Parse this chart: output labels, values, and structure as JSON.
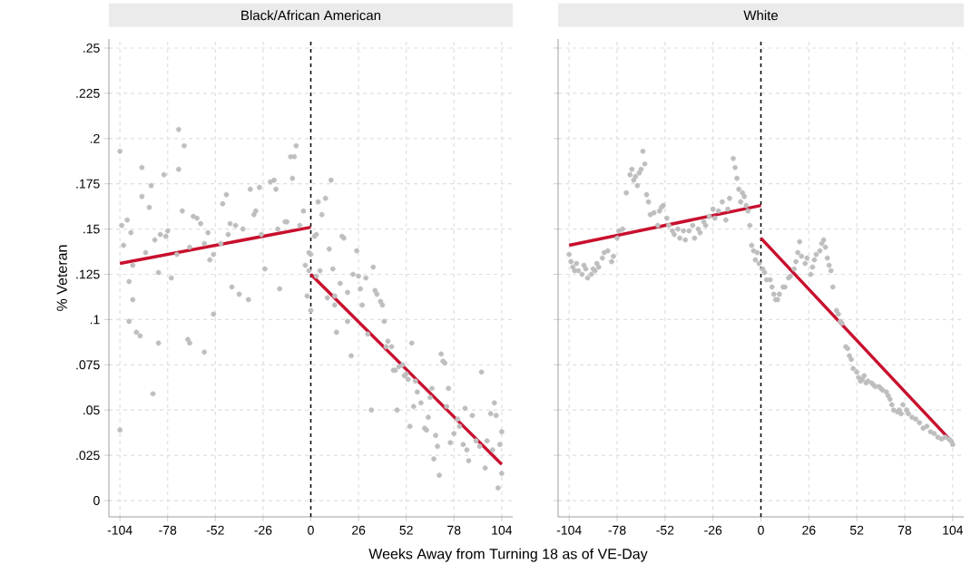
{
  "chart_data": [
    {
      "type": "scatter",
      "marker": "circle",
      "title": "Black/African American",
      "ylabel": "% Veteran",
      "xlabel": "Weeks Away from Turning 18 as of VE-Day",
      "xlim": [
        -110,
        110
      ],
      "ylim": [
        -0.009,
        0.255
      ],
      "xticks": [
        -104,
        -78,
        -52,
        -26,
        0,
        26,
        52,
        78,
        104
      ],
      "yticks": [
        0,
        {
          "value": 0.025,
          "label": ".025"
        },
        {
          "value": 0.05,
          "label": ".05"
        },
        {
          "value": 0.075,
          "label": ".075"
        },
        {
          "value": 0.1,
          "label": ".1"
        },
        {
          "value": 0.125,
          "label": ".125"
        },
        {
          "value": 0.15,
          "label": ".15"
        },
        {
          "value": 0.175,
          "label": ".175"
        },
        {
          "value": 0.2,
          "label": ".2"
        },
        {
          "value": 0.225,
          "label": ".225"
        },
        {
          "value": 0.25,
          "label": ".25"
        }
      ],
      "grid": true,
      "ref_lines": [
        {
          "axis": "x",
          "value": 0,
          "color": "#000000",
          "line_style": "dashed"
        }
      ],
      "series": [
        {
          "color": "#bebebe",
          "x": [
            -104,
            -104,
            -102,
            -103,
            -100,
            -98,
            -97,
            -99,
            -99,
            -97,
            -95,
            -93,
            -92,
            -92,
            -90,
            -88,
            -87,
            -86,
            -85,
            -83,
            -83,
            -82,
            -80,
            -79,
            -78,
            -76,
            -73,
            -72,
            -72,
            -70,
            -69,
            -67,
            -66,
            -66,
            -64,
            -62,
            -60,
            -58,
            -58,
            -56,
            -55,
            -53,
            -53,
            -49,
            -48,
            -46,
            -45,
            -44,
            -43,
            -41,
            -39,
            -37,
            -34,
            -33,
            -31,
            -30,
            -28,
            -27,
            -25,
            -22,
            -20,
            -19,
            -18,
            -17,
            -14,
            -13,
            -11,
            -10,
            -9,
            -8,
            -6,
            -4,
            -3,
            -2,
            -1,
            -1,
            0,
            0
          ],
          "values": [
            0.193,
            0.039,
            0.141,
            0.152,
            0.155,
            0.148,
            0.13,
            0.121,
            0.099,
            0.111,
            0.093,
            0.091,
            0.184,
            0.168,
            0.137,
            0.162,
            0.174,
            0.059,
            0.144,
            0.087,
            0.126,
            0.147,
            0.18,
            0.146,
            0.149,
            0.123,
            0.136,
            0.205,
            0.183,
            0.16,
            0.196,
            0.089,
            0.087,
            0.14,
            0.157,
            0.156,
            0.153,
            0.142,
            0.082,
            0.148,
            0.133,
            0.136,
            0.103,
            0.142,
            0.164,
            0.169,
            0.147,
            0.153,
            0.118,
            0.152,
            0.114,
            0.15,
            0.111,
            0.172,
            0.158,
            0.16,
            0.173,
            0.147,
            0.128,
            0.176,
            0.177,
            0.172,
            0.15,
            0.117,
            0.154,
            0.154,
            0.19,
            0.178,
            0.19,
            0.196,
            0.152,
            0.16,
            0.13,
            0.113,
            0.127,
            0.137,
            0.136,
            0.105
          ]
        },
        {
          "color": "#bebebe",
          "x": [
            2,
            3,
            4,
            3,
            6,
            5,
            8,
            9,
            10,
            11,
            12,
            13,
            13,
            14,
            16,
            17,
            18,
            20,
            20,
            22,
            23,
            25,
            26,
            27,
            28,
            30,
            31,
            33,
            34,
            35,
            36,
            38,
            39,
            40,
            41,
            42,
            44,
            45,
            46,
            47,
            48,
            50,
            51,
            52,
            53,
            54,
            55,
            56,
            57,
            58,
            60,
            62,
            63,
            64,
            65,
            66,
            67,
            68,
            69,
            70,
            71,
            72,
            73,
            74,
            75,
            76,
            78,
            80,
            81,
            83,
            84,
            85,
            86,
            88,
            90,
            92,
            93,
            95,
            96,
            98,
            99,
            100,
            101,
            102,
            103,
            104,
            104
          ],
          "values": [
            0.146,
            0.147,
            0.165,
            0.124,
            0.158,
            0.127,
            0.167,
            0.112,
            0.139,
            0.177,
            0.128,
            0.113,
            0.108,
            0.093,
            0.12,
            0.146,
            0.145,
            0.115,
            0.099,
            0.08,
            0.125,
            0.138,
            0.124,
            0.117,
            0.108,
            0.123,
            0.092,
            0.05,
            0.129,
            0.116,
            0.114,
            0.11,
            0.108,
            0.099,
            0.085,
            0.088,
            0.085,
            0.072,
            0.072,
            0.05,
            0.074,
            0.075,
            0.069,
            0.07,
            0.067,
            0.041,
            0.087,
            0.052,
            0.066,
            0.06,
            0.054,
            0.04,
            0.039,
            0.046,
            0.057,
            0.062,
            0.023,
            0.036,
            0.03,
            0.014,
            0.081,
            0.077,
            0.076,
            0.052,
            0.062,
            0.032,
            0.037,
            0.045,
            0.041,
            0.031,
            0.051,
            0.028,
            0.022,
            0.047,
            0.033,
            0.03,
            0.071,
            0.018,
            0.033,
            0.048,
            0.028,
            0.054,
            0.047,
            0.007,
            0.031,
            0.015,
            0.038
          ]
        },
        {
          "type": "line",
          "marker": "none",
          "color": "#c8102e",
          "x": [
            -104,
            0
          ],
          "values": [
            0.131,
            0.151
          ]
        },
        {
          "type": "line",
          "marker": "none",
          "color": "#c8102e",
          "x": [
            0,
            104
          ],
          "values": [
            0.125,
            0.02
          ]
        }
      ]
    },
    {
      "type": "scatter",
      "marker": "circle",
      "title": "White",
      "tick_labels": "x",
      "xlim": [
        -110,
        110
      ],
      "ylim": [
        -0.009,
        0.255
      ],
      "xticks": [
        -104,
        -78,
        -52,
        -26,
        0,
        26,
        52,
        78,
        104
      ],
      "yticks": [
        0,
        0.025,
        0.05,
        0.075,
        0.1,
        0.125,
        0.15,
        0.175,
        0.2,
        0.225,
        0.25
      ],
      "grid": true,
      "ref_lines": [
        {
          "axis": "x",
          "value": 0,
          "color": "#000000",
          "line_style": "dashed"
        }
      ],
      "series": [
        {
          "color": "#bebebe",
          "x": [
            -104,
            -103,
            -102,
            -101,
            -100,
            -99,
            -97,
            -96,
            -95,
            -94,
            -92,
            -91,
            -90,
            -89,
            -88,
            -86,
            -85,
            -83,
            -81,
            -80,
            -78,
            -77,
            -75,
            -73,
            -71,
            -70,
            -69,
            -68,
            -67,
            -66,
            -65,
            -64,
            -63,
            -62,
            -61,
            -60,
            -58,
            -56,
            -55,
            -54,
            -53,
            -51,
            -50,
            -48,
            -47,
            -45,
            -44,
            -42,
            -41,
            -39,
            -37,
            -36,
            -34,
            -33,
            -31,
            -30,
            -28,
            -26,
            -25,
            -23,
            -21,
            -19,
            -18,
            -17,
            -15,
            -14,
            -13,
            -12,
            -11,
            -10,
            -9,
            -8,
            -7,
            -6,
            -5,
            -4,
            -3,
            -2,
            -1
          ],
          "values": [
            0.136,
            0.132,
            0.129,
            0.127,
            0.131,
            0.127,
            0.125,
            0.13,
            0.128,
            0.123,
            0.125,
            0.128,
            0.127,
            0.131,
            0.129,
            0.134,
            0.137,
            0.138,
            0.132,
            0.135,
            0.145,
            0.149,
            0.15,
            0.17,
            0.18,
            0.183,
            0.177,
            0.179,
            0.174,
            0.181,
            0.183,
            0.193,
            0.186,
            0.169,
            0.165,
            0.158,
            0.159,
            0.152,
            0.16,
            0.162,
            0.163,
            0.156,
            0.152,
            0.149,
            0.147,
            0.15,
            0.145,
            0.149,
            0.144,
            0.149,
            0.152,
            0.145,
            0.15,
            0.148,
            0.154,
            0.152,
            0.157,
            0.161,
            0.156,
            0.16,
            0.165,
            0.155,
            0.161,
            0.167,
            0.189,
            0.184,
            0.178,
            0.172,
            0.165,
            0.17,
            0.168,
            0.163,
            0.16,
            0.152,
            0.141,
            0.138,
            0.133,
            0.137,
            0.131
          ]
        },
        {
          "color": "#bebebe",
          "x": [
            1,
            2,
            3,
            5,
            6,
            7,
            8,
            9,
            10,
            12,
            13,
            15,
            16,
            18,
            19,
            20,
            21,
            22,
            24,
            25,
            27,
            28,
            29,
            30,
            32,
            33,
            34,
            35,
            36,
            37,
            38,
            39,
            41,
            42,
            43,
            44,
            46,
            47,
            48,
            49,
            50,
            52,
            53,
            54,
            55,
            56,
            57,
            58,
            60,
            61,
            62,
            64,
            65,
            66,
            68,
            69,
            70,
            71,
            72,
            74,
            75,
            76,
            77,
            79,
            80,
            82,
            84,
            86,
            88,
            90,
            92,
            94,
            96,
            98,
            100,
            102,
            103,
            104
          ],
          "values": [
            0.128,
            0.126,
            0.122,
            0.122,
            0.118,
            0.114,
            0.111,
            0.111,
            0.114,
            0.118,
            0.118,
            0.123,
            0.124,
            0.128,
            0.132,
            0.137,
            0.143,
            0.135,
            0.131,
            0.134,
            0.125,
            0.129,
            0.133,
            0.136,
            0.138,
            0.142,
            0.144,
            0.14,
            0.134,
            0.13,
            0.127,
            0.118,
            0.105,
            0.103,
            0.099,
            0.098,
            0.085,
            0.084,
            0.08,
            0.078,
            0.073,
            0.071,
            0.068,
            0.066,
            0.067,
            0.069,
            0.065,
            0.066,
            0.065,
            0.064,
            0.063,
            0.063,
            0.062,
            0.061,
            0.06,
            0.058,
            0.056,
            0.053,
            0.05,
            0.049,
            0.05,
            0.048,
            0.053,
            0.05,
            0.048,
            0.046,
            0.045,
            0.043,
            0.04,
            0.041,
            0.038,
            0.037,
            0.035,
            0.034,
            0.035,
            0.034,
            0.033,
            0.031
          ]
        },
        {
          "type": "line",
          "marker": "none",
          "color": "#c8102e",
          "x": [
            -104,
            0
          ],
          "values": [
            0.141,
            0.163
          ]
        },
        {
          "type": "line",
          "marker": "none",
          "color": "#c8102e",
          "x": [
            0,
            104
          ],
          "values": [
            0.145,
            0.032
          ]
        }
      ]
    }
  ]
}
